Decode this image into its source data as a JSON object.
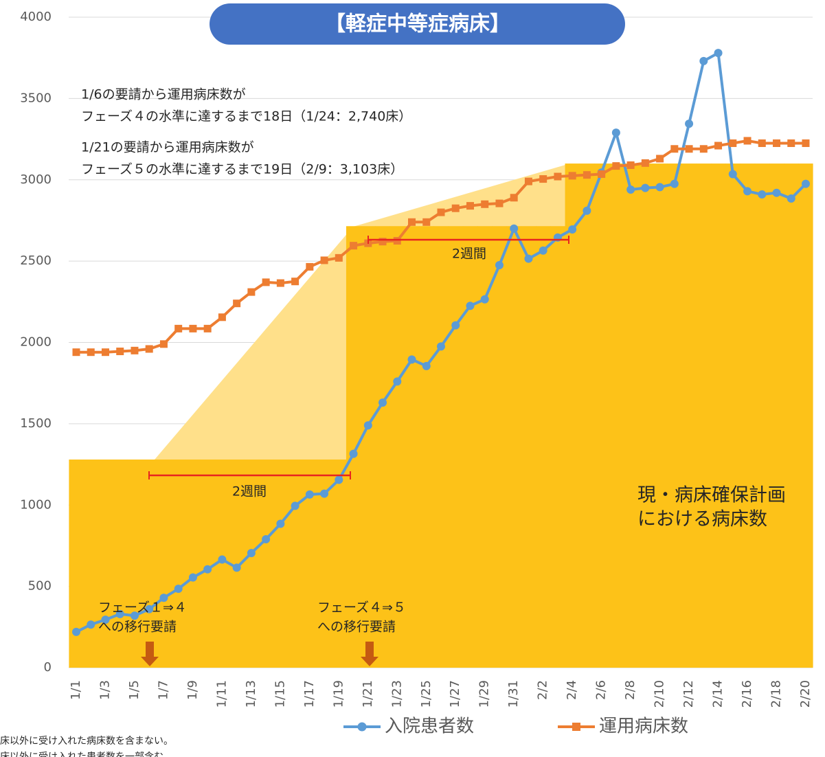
{
  "chart_data": {
    "type": "line",
    "title": "【軽症中等症病床】",
    "categories": [
      "1/1",
      null,
      "1/3",
      null,
      "1/5",
      null,
      "1/7",
      null,
      "1/9",
      null,
      "1/11",
      null,
      "1/13",
      null,
      "1/15",
      null,
      "1/17",
      null,
      "1/19",
      null,
      "1/21",
      null,
      "1/23",
      null,
      "1/25",
      null,
      "1/27",
      null,
      "1/29",
      null,
      "1/31",
      null,
      "2/2",
      null,
      "2/4",
      null,
      "2/6",
      null,
      "2/8",
      null,
      "2/10",
      null,
      "2/12",
      null,
      "2/14",
      null,
      "2/16",
      null,
      "2/18",
      null,
      "2/20"
    ],
    "series": [
      {
        "name": "入院患者数",
        "color": "#5b9bd5",
        "marker": "circle",
        "values": [
          220,
          265,
          295,
          330,
          320,
          360,
          430,
          485,
          555,
          605,
          665,
          615,
          705,
          790,
          885,
          995,
          1065,
          1070,
          1155,
          1315,
          1490,
          1630,
          1760,
          1895,
          1855,
          1975,
          2105,
          2225,
          2265,
          2475,
          2700,
          2515,
          2565,
          2645,
          2695,
          2810,
          3045,
          3290,
          2940,
          2950,
          2955,
          2975,
          3345,
          3730,
          3780,
          3035,
          2930,
          2910,
          2920,
          2885,
          2975
        ]
      },
      {
        "name": "運用病床数",
        "color": "#ed7d31",
        "marker": "square",
        "values": [
          1940,
          1940,
          1940,
          1945,
          1950,
          1960,
          1990,
          2085,
          2085,
          2085,
          2155,
          2240,
          2310,
          2370,
          2365,
          2375,
          2465,
          2505,
          2520,
          2595,
          2610,
          2620,
          2625,
          2740,
          2740,
          2800,
          2825,
          2840,
          2850,
          2855,
          2890,
          2990,
          3005,
          3020,
          3025,
          3030,
          3035,
          3085,
          3090,
          3103,
          3130,
          3190,
          3190,
          3190,
          3210,
          3225,
          3240,
          3225,
          3225,
          3225,
          3225
        ]
      }
    ],
    "plan": {
      "label": [
        "現・病床確保計画",
        "における病床数"
      ],
      "color": "#fdc218",
      "values": [
        1280,
        1280,
        1280,
        1280,
        1280,
        1280,
        1280,
        1280,
        1280,
        1280,
        1280,
        1280,
        1280,
        1280,
        1280,
        1280,
        1280,
        1280,
        1280,
        2715,
        2715,
        2715,
        2715,
        2715,
        2715,
        2715,
        2715,
        2715,
        2715,
        2715,
        2715,
        2715,
        2715,
        2715,
        3100,
        3100,
        3100,
        3100,
        3100,
        3100,
        3100,
        3100,
        3100,
        3100,
        3100,
        3100,
        3100,
        3100,
        3100,
        3100,
        3100
      ]
    },
    "ylim": [
      0,
      4000
    ],
    "yticks": [
      0,
      500,
      1000,
      1500,
      2000,
      2500,
      3000,
      3500,
      4000
    ],
    "grid": true,
    "annotations": {
      "note1": [
        "1/6の要請から運用病床数が",
        "フェーズ４の水準に達するまで18日（1/24：2,740床）"
      ],
      "note2": [
        "1/21の要請から運用病床数が",
        "フェーズ５の水準に達するまで19日（2/9：3,103床）"
      ],
      "span1": "2週間",
      "span2": "2週間",
      "request1": [
        "フェーズ１⇒４",
        "への移行要請"
      ],
      "request2": [
        "フェーズ４⇒５",
        "への移行要請"
      ]
    },
    "footnotes": [
      "床以外に受け入れた病床数を含まない。",
      "床以外に受け入れた患者数を一部含む"
    ]
  }
}
